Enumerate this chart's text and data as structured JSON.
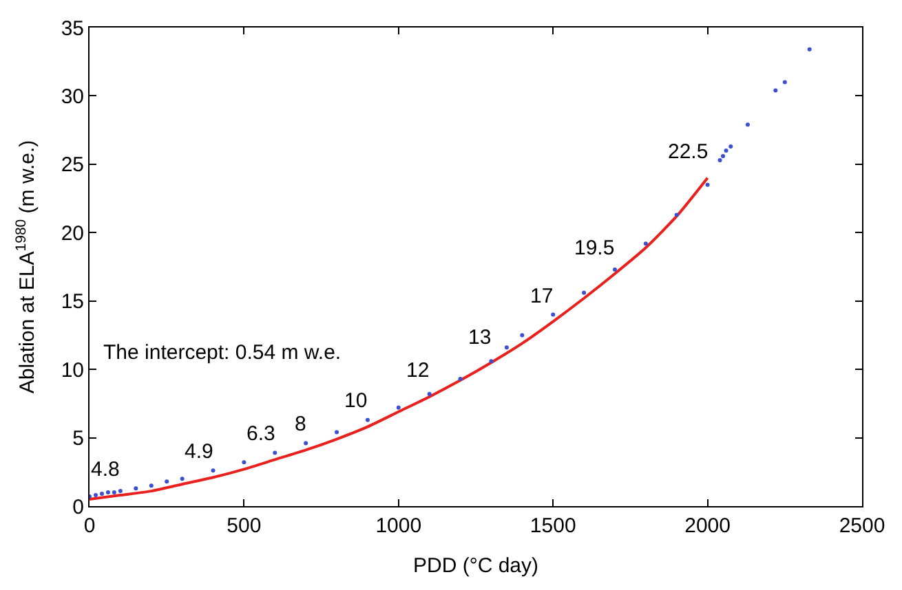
{
  "chart_data": {
    "type": "scatter",
    "xlabel": "PDD (°C day)",
    "ylabel": "Ablation at ELA$^{1980}$ (m w.e.)",
    "xlim": [
      0,
      2500
    ],
    "xticks": [
      0,
      500,
      1000,
      1500,
      2000,
      2500
    ],
    "ylim": [
      0,
      35
    ],
    "yticks": [
      0,
      5,
      10,
      15,
      20,
      25,
      30,
      35
    ],
    "series": [
      {
        "color": "#3b4fd0",
        "x": [
          0,
          20,
          40,
          60,
          80,
          100,
          150,
          200,
          250,
          300,
          400,
          500,
          600,
          700,
          800,
          900,
          1000,
          1100,
          1200,
          1300,
          1350,
          1400,
          1500,
          1600,
          1700,
          1800,
          1900,
          2000,
          2040,
          2050,
          2060,
          2075,
          2130,
          2220,
          2250,
          2330
        ],
        "values": [
          0.7,
          0.8,
          0.9,
          1.0,
          1.0,
          1.1,
          1.3,
          1.5,
          1.8,
          2.0,
          2.6,
          3.2,
          3.9,
          4.6,
          5.4,
          6.3,
          7.2,
          8.2,
          9.3,
          10.6,
          11.6,
          12.5,
          14.0,
          15.6,
          17.3,
          19.2,
          21.3,
          23.5,
          25.3,
          25.6,
          26.0,
          26.3,
          27.9,
          30.4,
          31.0,
          33.4
        ]
      },
      {
        "type": "line",
        "color": "#e8201e",
        "marker": "none",
        "x": [
          0,
          100,
          200,
          300,
          400,
          500,
          600,
          700,
          800,
          900,
          1000,
          1100,
          1200,
          1300,
          1400,
          1500,
          1600,
          1700,
          1800,
          1900,
          2000
        ],
        "values": [
          0.5,
          0.8,
          1.1,
          1.6,
          2.1,
          2.7,
          3.4,
          4.1,
          4.9,
          5.8,
          6.9,
          8.0,
          9.2,
          10.5,
          11.9,
          13.5,
          15.2,
          17.0,
          18.9,
          21.2,
          24.0
        ]
      }
    ],
    "annotations": [
      {
        "text": "4.8",
        "x": 100,
        "y": 0.8
      },
      {
        "text": "4.9",
        "x": 400,
        "y": 2.1
      },
      {
        "text": "6.3",
        "x": 600,
        "y": 3.4
      },
      {
        "text": "8",
        "x": 700,
        "y": 4.1
      },
      {
        "text": "10",
        "x": 900,
        "y": 5.8
      },
      {
        "text": "12",
        "x": 1100,
        "y": 8.0
      },
      {
        "text": "13",
        "x": 1300,
        "y": 10.5
      },
      {
        "text": "17",
        "x": 1500,
        "y": 13.5
      },
      {
        "text": "19.5",
        "x": 1700,
        "y": 17.0
      },
      {
        "text": "22.5",
        "x": 2000,
        "y": 24.0
      },
      "The intercept: 0.54 m w.e."
    ]
  }
}
